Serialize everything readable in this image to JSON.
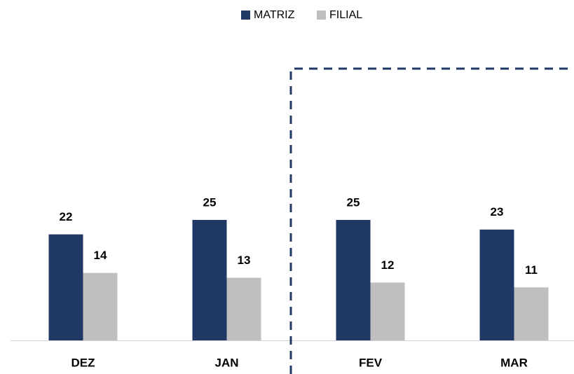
{
  "chart_data": {
    "type": "bar",
    "categories": [
      "DEZ",
      "JAN",
      "FEV",
      "MAR"
    ],
    "series": [
      {
        "name": "MATRIZ",
        "color": "#203864",
        "values": [
          22,
          25,
          25,
          23
        ]
      },
      {
        "name": "FILIAL",
        "color": "#bfbfbf",
        "values": [
          14,
          13,
          12,
          11
        ]
      }
    ]
  }
}
